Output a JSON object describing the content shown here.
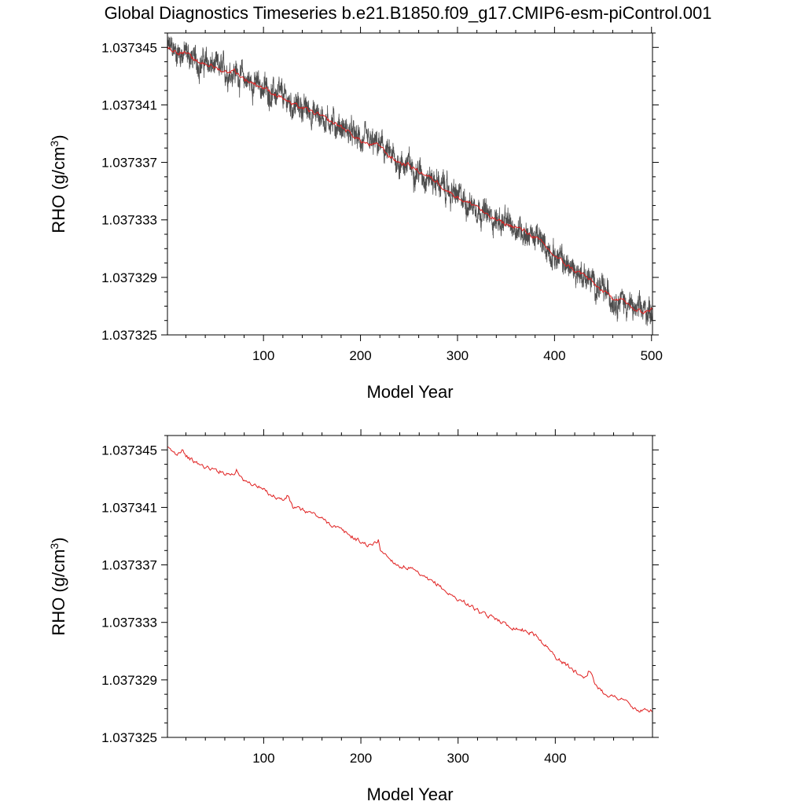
{
  "figure_title": "Global Diagnostics Timeseries b.e21.B1850.f09_g17.CMIP6-esm-piControl.001",
  "colors": {
    "monthly": "#3a3a3a",
    "annual_mean": "#e02020",
    "axis": "#000000",
    "background": "#ffffff"
  },
  "chart_data": [
    {
      "type": "line",
      "panel": "top",
      "xlabel": "Model Year",
      "ylabel_main": "RHO (g/cm",
      "ylabel_sup": "3",
      "ylabel_close": ")",
      "xlim": [
        1,
        501
      ],
      "ylim": [
        1.037325,
        1.037346
      ],
      "xticks": [
        100,
        200,
        300,
        400,
        500
      ],
      "xtick_labels": [
        "100",
        "200",
        "300",
        "400",
        "500"
      ],
      "yticks": [
        1.037325,
        1.037329,
        1.037333,
        1.037337,
        1.037341,
        1.037345
      ],
      "ytick_labels": [
        "1.037325",
        "1.037329",
        "1.037333",
        "1.037337",
        "1.037341",
        "1.037345"
      ],
      "series": [
        {
          "kind": "monthly",
          "color": "#3a3a3a",
          "x": [
            1,
            10,
            20,
            30,
            40,
            50,
            60,
            70,
            80,
            90,
            100,
            110,
            120,
            130,
            140,
            150,
            160,
            170,
            180,
            190,
            200,
            210,
            220,
            230,
            240,
            250,
            260,
            270,
            280,
            290,
            300,
            310,
            320,
            330,
            340,
            350,
            360,
            370,
            380,
            390,
            400,
            410,
            420,
            430,
            440,
            450,
            460,
            470,
            480,
            490,
            500
          ],
          "y": [
            1.037345,
            1.0373447,
            1.0373446,
            1.037344,
            1.0373439,
            1.0373436,
            1.0373433,
            1.0373434,
            1.0373428,
            1.0373425,
            1.0373422,
            1.0373418,
            1.0373415,
            1.037341,
            1.0373408,
            1.0373405,
            1.0373402,
            1.0373398,
            1.0373395,
            1.037339,
            1.0373385,
            1.0373382,
            1.0373382,
            1.0373374,
            1.037337,
            1.0373368,
            1.0373364,
            1.037336,
            1.0373356,
            1.037335,
            1.0373346,
            1.0373342,
            1.037334,
            1.0373333,
            1.037333,
            1.0373327,
            1.0373325,
            1.0373322,
            1.0373318,
            1.0373312,
            1.0373305,
            1.03733,
            1.0373295,
            1.0373292,
            1.0373286,
            1.037328,
            1.0373276,
            1.0373275,
            1.0373268,
            1.0373266,
            1.0373268
          ],
          "band_halfwidth": 8e-07
        },
        {
          "kind": "annual_mean",
          "color": "#e02020",
          "x": [
            1,
            10,
            20,
            30,
            40,
            50,
            60,
            70,
            80,
            90,
            100,
            110,
            120,
            130,
            140,
            150,
            160,
            170,
            180,
            190,
            200,
            210,
            220,
            230,
            240,
            250,
            260,
            270,
            280,
            290,
            300,
            310,
            320,
            330,
            340,
            350,
            360,
            370,
            380,
            390,
            400,
            410,
            420,
            430,
            440,
            450,
            460,
            470,
            480,
            490,
            500
          ],
          "y": [
            1.037345,
            1.0373447,
            1.0373446,
            1.037344,
            1.0373439,
            1.0373436,
            1.0373433,
            1.0373434,
            1.0373428,
            1.0373425,
            1.0373422,
            1.0373418,
            1.0373415,
            1.037341,
            1.0373408,
            1.0373405,
            1.0373402,
            1.0373398,
            1.0373395,
            1.037339,
            1.0373385,
            1.0373382,
            1.0373382,
            1.0373374,
            1.037337,
            1.0373368,
            1.0373364,
            1.037336,
            1.0373356,
            1.037335,
            1.0373346,
            1.0373342,
            1.037334,
            1.0373333,
            1.037333,
            1.0373327,
            1.0373325,
            1.0373322,
            1.0373318,
            1.0373312,
            1.0373305,
            1.03733,
            1.0373295,
            1.0373292,
            1.0373286,
            1.037328,
            1.0373276,
            1.0373275,
            1.0373268,
            1.0373266,
            1.0373268
          ]
        }
      ]
    },
    {
      "type": "line",
      "panel": "bottom",
      "xlabel": "Model Year",
      "ylabel_main": "RHO (g/cm",
      "ylabel_sup": "3",
      "ylabel_close": ")",
      "xlim": [
        1,
        500
      ],
      "ylim": [
        1.037325,
        1.037346
      ],
      "xticks": [
        100,
        200,
        300,
        400
      ],
      "xtick_labels": [
        "100",
        "200",
        "300",
        "400"
      ],
      "yticks": [
        1.037325,
        1.037329,
        1.037333,
        1.037337,
        1.037341,
        1.037345
      ],
      "ytick_labels": [
        "1.037325",
        "1.037329",
        "1.037333",
        "1.037337",
        "1.037341",
        "1.037345"
      ],
      "series": [
        {
          "kind": "annual_mean",
          "color": "#e02020",
          "x": [
            1,
            10,
            17,
            20,
            30,
            40,
            50,
            60,
            70,
            72,
            80,
            90,
            100,
            110,
            120,
            125,
            130,
            140,
            150,
            160,
            170,
            180,
            190,
            200,
            210,
            218,
            220,
            230,
            240,
            250,
            260,
            270,
            280,
            290,
            300,
            310,
            320,
            330,
            340,
            350,
            360,
            370,
            380,
            390,
            400,
            410,
            420,
            430,
            435,
            440,
            450,
            460,
            470,
            480,
            490,
            499
          ],
          "y": [
            1.0373451,
            1.0373447,
            1.0373451,
            1.0373446,
            1.0373441,
            1.0373438,
            1.0373436,
            1.0373434,
            1.0373433,
            1.0373437,
            1.0373428,
            1.0373426,
            1.0373422,
            1.0373418,
            1.0373415,
            1.0373418,
            1.037341,
            1.0373408,
            1.0373406,
            1.0373402,
            1.0373398,
            1.0373394,
            1.037339,
            1.0373386,
            1.0373383,
            1.0373387,
            1.0373381,
            1.0373374,
            1.0373369,
            1.0373368,
            1.0373363,
            1.0373359,
            1.0373356,
            1.037335,
            1.0373346,
            1.0373343,
            1.0373338,
            1.0373334,
            1.0373333,
            1.0373328,
            1.0373326,
            1.0373324,
            1.0373321,
            1.0373314,
            1.0373306,
            1.0373301,
            1.0373296,
            1.0373292,
            1.0373297,
            1.0373288,
            1.0373281,
            1.0373278,
            1.0373277,
            1.037327,
            1.0373268,
            1.0373269
          ]
        }
      ]
    }
  ]
}
